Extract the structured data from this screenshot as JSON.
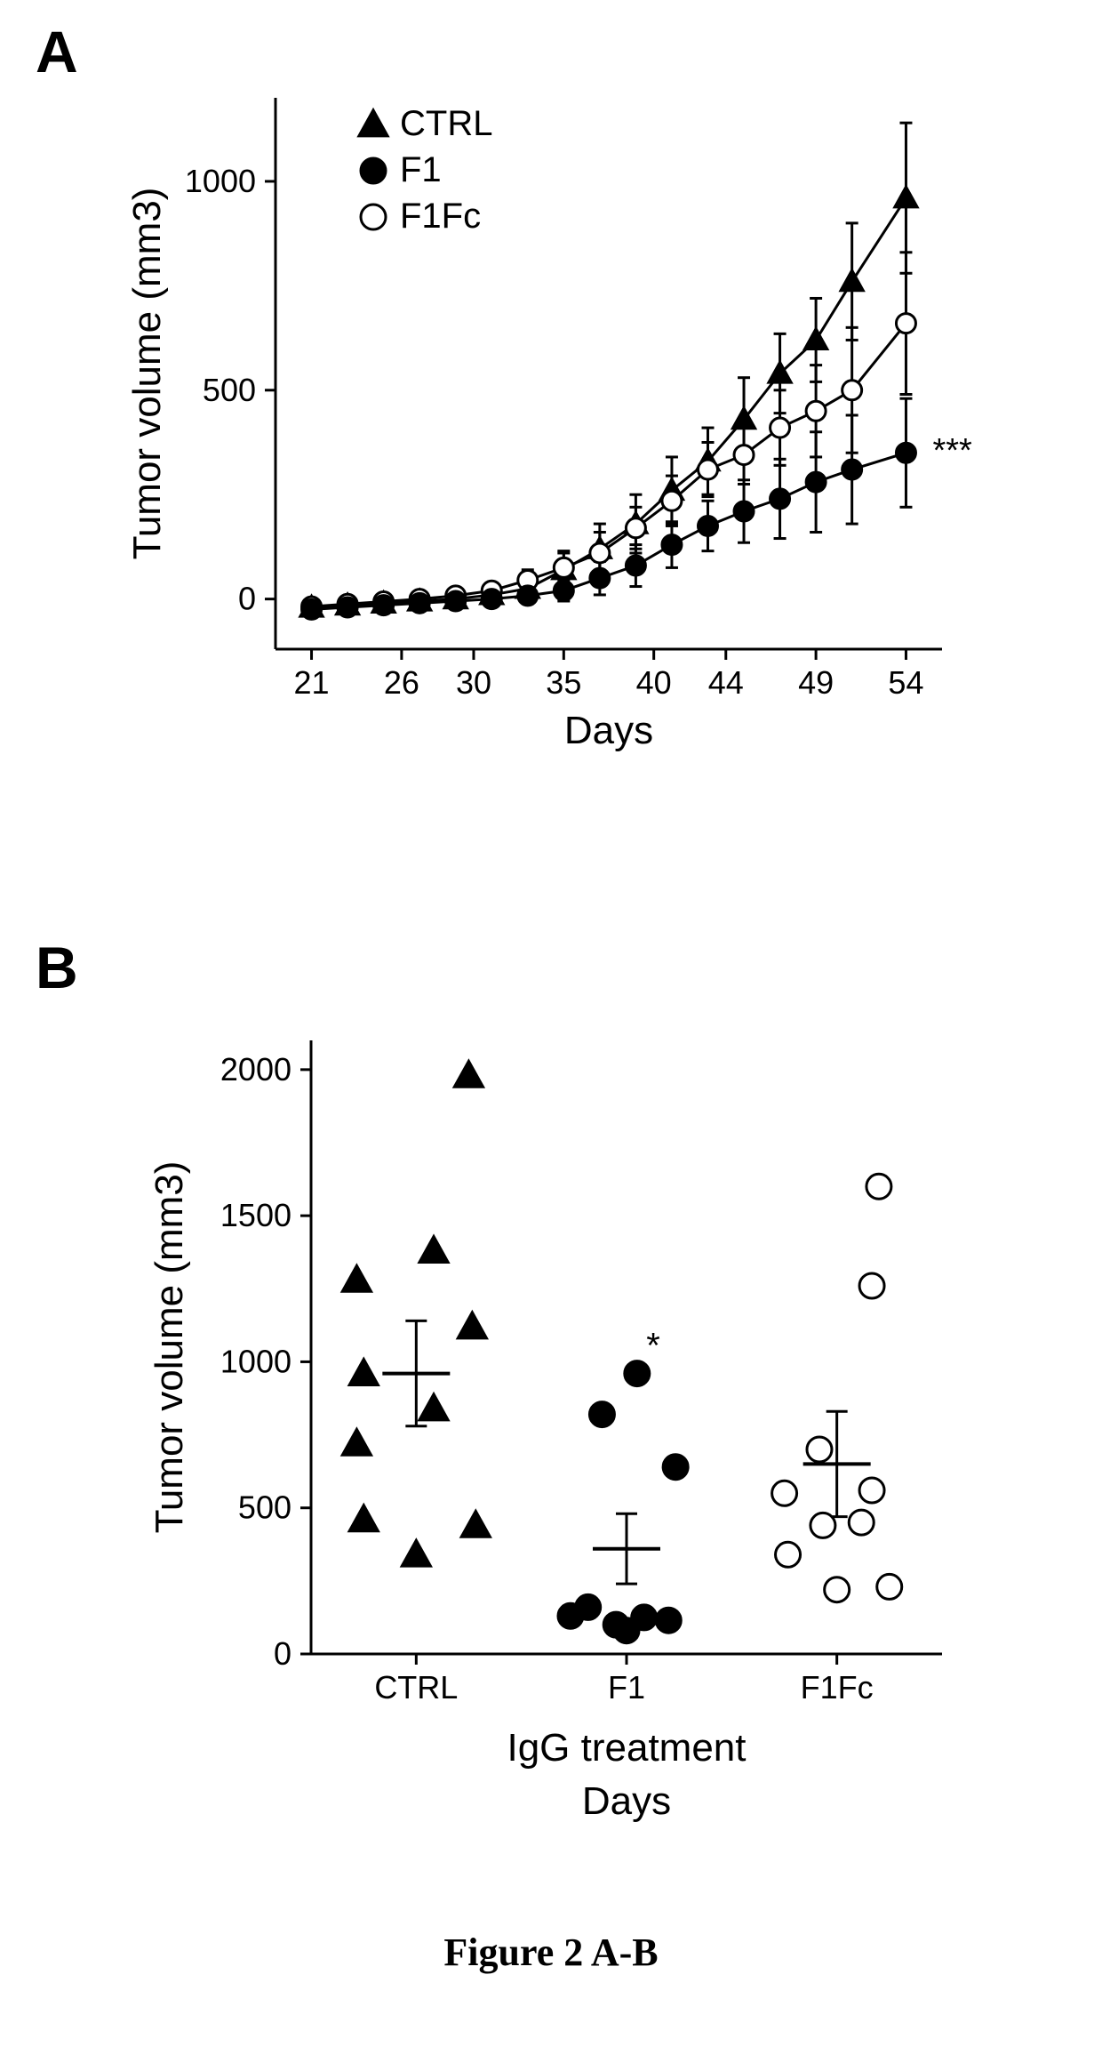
{
  "panelA": {
    "label": "A",
    "chart": {
      "type": "line",
      "ylabel": "Tumor volume (mm3)",
      "xlabel": "Days",
      "x_ticks": [
        21,
        26,
        30,
        35,
        40,
        44,
        49,
        54
      ],
      "y_ticks": [
        0,
        500,
        1000
      ],
      "xlim": [
        19,
        56
      ],
      "ylim": [
        -120,
        1200
      ],
      "line_color": "#000000",
      "line_width": 3,
      "axis_color": "#000000",
      "axis_width": 3,
      "tick_font_size": 36,
      "label_font_size": 44,
      "legend": {
        "items": [
          {
            "label": "CTRL",
            "marker": "triangle-filled"
          },
          {
            "label": "F1",
            "marker": "circle-filled"
          },
          {
            "label": "F1Fc",
            "marker": "circle-open"
          }
        ],
        "font_size": 40
      },
      "significance": {
        "text": "***",
        "series": "F1"
      },
      "series": [
        {
          "name": "CTRL",
          "marker": "triangle-filled",
          "points": [
            {
              "x": 21,
              "y": -20,
              "err": 0
            },
            {
              "x": 23,
              "y": -15,
              "err": 0
            },
            {
              "x": 25,
              "y": -10,
              "err": 0
            },
            {
              "x": 27,
              "y": -5,
              "err": 0
            },
            {
              "x": 29,
              "y": 0,
              "err": 0
            },
            {
              "x": 31,
              "y": 10,
              "err": 10
            },
            {
              "x": 33,
              "y": 25,
              "err": 20
            },
            {
              "x": 35,
              "y": 70,
              "err": 40
            },
            {
              "x": 37,
              "y": 120,
              "err": 60
            },
            {
              "x": 39,
              "y": 180,
              "err": 70
            },
            {
              "x": 41,
              "y": 260,
              "err": 80
            },
            {
              "x": 43,
              "y": 330,
              "err": 80
            },
            {
              "x": 45,
              "y": 430,
              "err": 100
            },
            {
              "x": 47,
              "y": 540,
              "err": 95
            },
            {
              "x": 49,
              "y": 620,
              "err": 100
            },
            {
              "x": 51,
              "y": 760,
              "err": 140
            },
            {
              "x": 54,
              "y": 960,
              "err": 180
            }
          ]
        },
        {
          "name": "F1Fc",
          "marker": "circle-open",
          "points": [
            {
              "x": 21,
              "y": -18,
              "err": 0
            },
            {
              "x": 23,
              "y": -12,
              "err": 0
            },
            {
              "x": 25,
              "y": -6,
              "err": 0
            },
            {
              "x": 27,
              "y": 0,
              "err": 0
            },
            {
              "x": 29,
              "y": 8,
              "err": 5
            },
            {
              "x": 31,
              "y": 20,
              "err": 15
            },
            {
              "x": 33,
              "y": 45,
              "err": 25
            },
            {
              "x": 35,
              "y": 75,
              "err": 40
            },
            {
              "x": 37,
              "y": 110,
              "err": 50
            },
            {
              "x": 39,
              "y": 170,
              "err": 50
            },
            {
              "x": 41,
              "y": 235,
              "err": 60
            },
            {
              "x": 43,
              "y": 310,
              "err": 65
            },
            {
              "x": 45,
              "y": 345,
              "err": 70
            },
            {
              "x": 47,
              "y": 410,
              "err": 90
            },
            {
              "x": 49,
              "y": 450,
              "err": 110
            },
            {
              "x": 51,
              "y": 500,
              "err": 150
            },
            {
              "x": 54,
              "y": 660,
              "err": 170
            }
          ]
        },
        {
          "name": "F1",
          "marker": "circle-filled",
          "points": [
            {
              "x": 21,
              "y": -25,
              "err": 0
            },
            {
              "x": 23,
              "y": -20,
              "err": 0
            },
            {
              "x": 25,
              "y": -15,
              "err": 0
            },
            {
              "x": 27,
              "y": -10,
              "err": 0
            },
            {
              "x": 29,
              "y": -5,
              "err": 0
            },
            {
              "x": 31,
              "y": 0,
              "err": 5
            },
            {
              "x": 33,
              "y": 8,
              "err": 10
            },
            {
              "x": 35,
              "y": 20,
              "err": 25
            },
            {
              "x": 37,
              "y": 50,
              "err": 40
            },
            {
              "x": 39,
              "y": 80,
              "err": 50
            },
            {
              "x": 41,
              "y": 130,
              "err": 55
            },
            {
              "x": 43,
              "y": 175,
              "err": 60
            },
            {
              "x": 45,
              "y": 210,
              "err": 75
            },
            {
              "x": 47,
              "y": 240,
              "err": 95
            },
            {
              "x": 49,
              "y": 280,
              "err": 120
            },
            {
              "x": 51,
              "y": 310,
              "err": 130
            },
            {
              "x": 54,
              "y": 350,
              "err": 130
            }
          ]
        }
      ]
    }
  },
  "panelB": {
    "label": "B",
    "chart": {
      "type": "scatter",
      "ylabel": "Tumor volume (mm3)",
      "xlabel": "IgG treatment",
      "xlabel2": "Days",
      "categories": [
        "CTRL",
        "F1",
        "F1Fc"
      ],
      "y_ticks": [
        0,
        500,
        1000,
        1500,
        2000
      ],
      "ylim": [
        0,
        2100
      ],
      "axis_color": "#000000",
      "axis_width": 3,
      "tick_font_size": 36,
      "label_font_size": 44,
      "sig_annotation": {
        "group": "F1",
        "text": "*"
      },
      "groups": [
        {
          "name": "CTRL",
          "marker": "triangle-filled",
          "mean": 960,
          "sem": 180,
          "points": [
            {
              "jx": -0.3,
              "y": 960
            },
            {
              "jx": 0.3,
              "y": 1980
            },
            {
              "jx": -0.34,
              "y": 1280
            },
            {
              "jx": 0.1,
              "y": 1380
            },
            {
              "jx": 0.32,
              "y": 1120
            },
            {
              "jx": -0.34,
              "y": 720
            },
            {
              "jx": 0.1,
              "y": 840
            },
            {
              "jx": -0.3,
              "y": 460
            },
            {
              "jx": 0.34,
              "y": 440
            },
            {
              "jx": 0.0,
              "y": 340
            }
          ]
        },
        {
          "name": "F1",
          "marker": "circle-filled",
          "mean": 360,
          "sem": 120,
          "points": [
            {
              "jx": 0.06,
              "y": 960
            },
            {
              "jx": -0.14,
              "y": 820
            },
            {
              "jx": 0.28,
              "y": 640
            },
            {
              "jx": -0.22,
              "y": 160
            },
            {
              "jx": -0.32,
              "y": 130
            },
            {
              "jx": -0.06,
              "y": 100
            },
            {
              "jx": 0.1,
              "y": 125
            },
            {
              "jx": 0.24,
              "y": 115
            },
            {
              "jx": 0.0,
              "y": 80
            }
          ]
        },
        {
          "name": "F1Fc",
          "marker": "circle-open",
          "mean": 650,
          "sem": 180,
          "points": [
            {
              "jx": 0.24,
              "y": 1600
            },
            {
              "jx": 0.2,
              "y": 1260
            },
            {
              "jx": -0.1,
              "y": 700
            },
            {
              "jx": -0.3,
              "y": 550
            },
            {
              "jx": 0.2,
              "y": 560
            },
            {
              "jx": -0.08,
              "y": 440
            },
            {
              "jx": 0.14,
              "y": 450
            },
            {
              "jx": -0.28,
              "y": 340
            },
            {
              "jx": 0.3,
              "y": 230
            },
            {
              "jx": 0.0,
              "y": 220
            }
          ]
        }
      ]
    }
  },
  "caption": "Figure 2 A-B"
}
